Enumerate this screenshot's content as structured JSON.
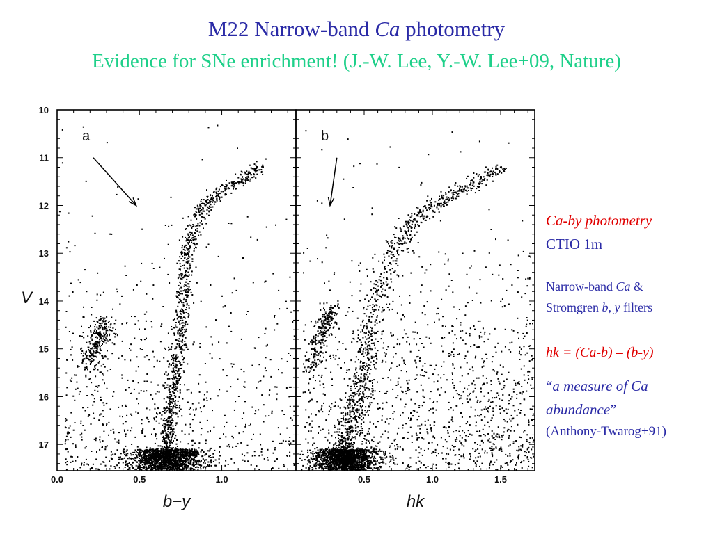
{
  "slide": {
    "title_a": "M22 Narrow-band ",
    "title_b": "Ca",
    "title_c": " photometry",
    "subtitle": "Evidence for SNe enrichment! (J.-W. Lee, Y.-W. Lee+09, Nature)"
  },
  "notes": {
    "line1": "Ca-by photometry",
    "line2": "CTIO 1m",
    "line3a": "Narrow-band  ",
    "line3b": "Ca",
    "line3c": " &",
    "line4a": "Stromgren  ",
    "line4b": "b, y",
    "line4c": "  filters",
    "line5": "hk = (Ca-b) – (b-y)",
    "line6a": "“",
    "line6b": "a measure of Ca",
    "line7a": "abundance",
    "line7b": "”",
    "line8": "(Anthony-Twarog+91)",
    "colors": {
      "red": "#e00000",
      "blue": "#2a2aa6",
      "green": "#1fd08a"
    }
  },
  "chart_data": [
    {
      "type": "scatter",
      "panel_label": "a",
      "xlabel": "b−y",
      "ylabel": "V",
      "xlim": [
        0.0,
        1.45
      ],
      "ylim": [
        17.55,
        10.0
      ],
      "y_inverted": true,
      "xticks": [
        0.0,
        0.5,
        1.0
      ],
      "xtick_labels": [
        "0.0",
        "0.5",
        "1.0"
      ],
      "yticks": [
        10,
        11,
        12,
        13,
        14,
        15,
        16,
        17
      ],
      "ytick_labels": [
        "10",
        "11",
        "12",
        "13",
        "14",
        "15",
        "16",
        "17"
      ],
      "features": {
        "main_sequence_turnoff": {
          "x": 0.66,
          "y": 17.3
        },
        "red_giant_branch": [
          [
            0.66,
            17.3
          ],
          [
            0.7,
            16.0
          ],
          [
            0.74,
            14.8
          ],
          [
            0.77,
            13.8
          ],
          [
            0.8,
            12.8
          ],
          [
            0.88,
            12.0
          ],
          [
            1.05,
            11.6
          ],
          [
            1.25,
            11.2
          ]
        ],
        "horizontal_branch": [
          [
            0.2,
            15.3
          ],
          [
            0.25,
            14.8
          ],
          [
            0.3,
            14.4
          ]
        ],
        "arrow_annotation": {
          "from": [
            0.22,
            11.0
          ],
          "to": [
            0.48,
            12.0
          ]
        }
      }
    },
    {
      "type": "scatter",
      "panel_label": "b",
      "xlabel": "hk",
      "ylabel": "",
      "xlim": [
        0.0,
        1.75
      ],
      "ylim": [
        17.55,
        10.0
      ],
      "y_inverted": true,
      "xticks": [
        0.5,
        1.0,
        1.5
      ],
      "xtick_labels": [
        "0.5",
        "1.0",
        "1.5"
      ],
      "features": {
        "main_sequence_turnoff": {
          "x": 0.35,
          "y": 17.3
        },
        "red_giant_branch": [
          [
            0.35,
            17.3
          ],
          [
            0.45,
            16.0
          ],
          [
            0.55,
            14.6
          ],
          [
            0.7,
            13.0
          ],
          [
            0.9,
            12.2
          ],
          [
            1.2,
            11.7
          ],
          [
            1.5,
            11.2
          ]
        ],
        "horizontal_branch": [
          [
            0.1,
            15.6
          ],
          [
            0.2,
            14.6
          ],
          [
            0.27,
            14.2
          ]
        ],
        "arrow_annotation": {
          "from": [
            0.3,
            11.0
          ],
          "to": [
            0.25,
            12.0
          ]
        }
      }
    }
  ]
}
